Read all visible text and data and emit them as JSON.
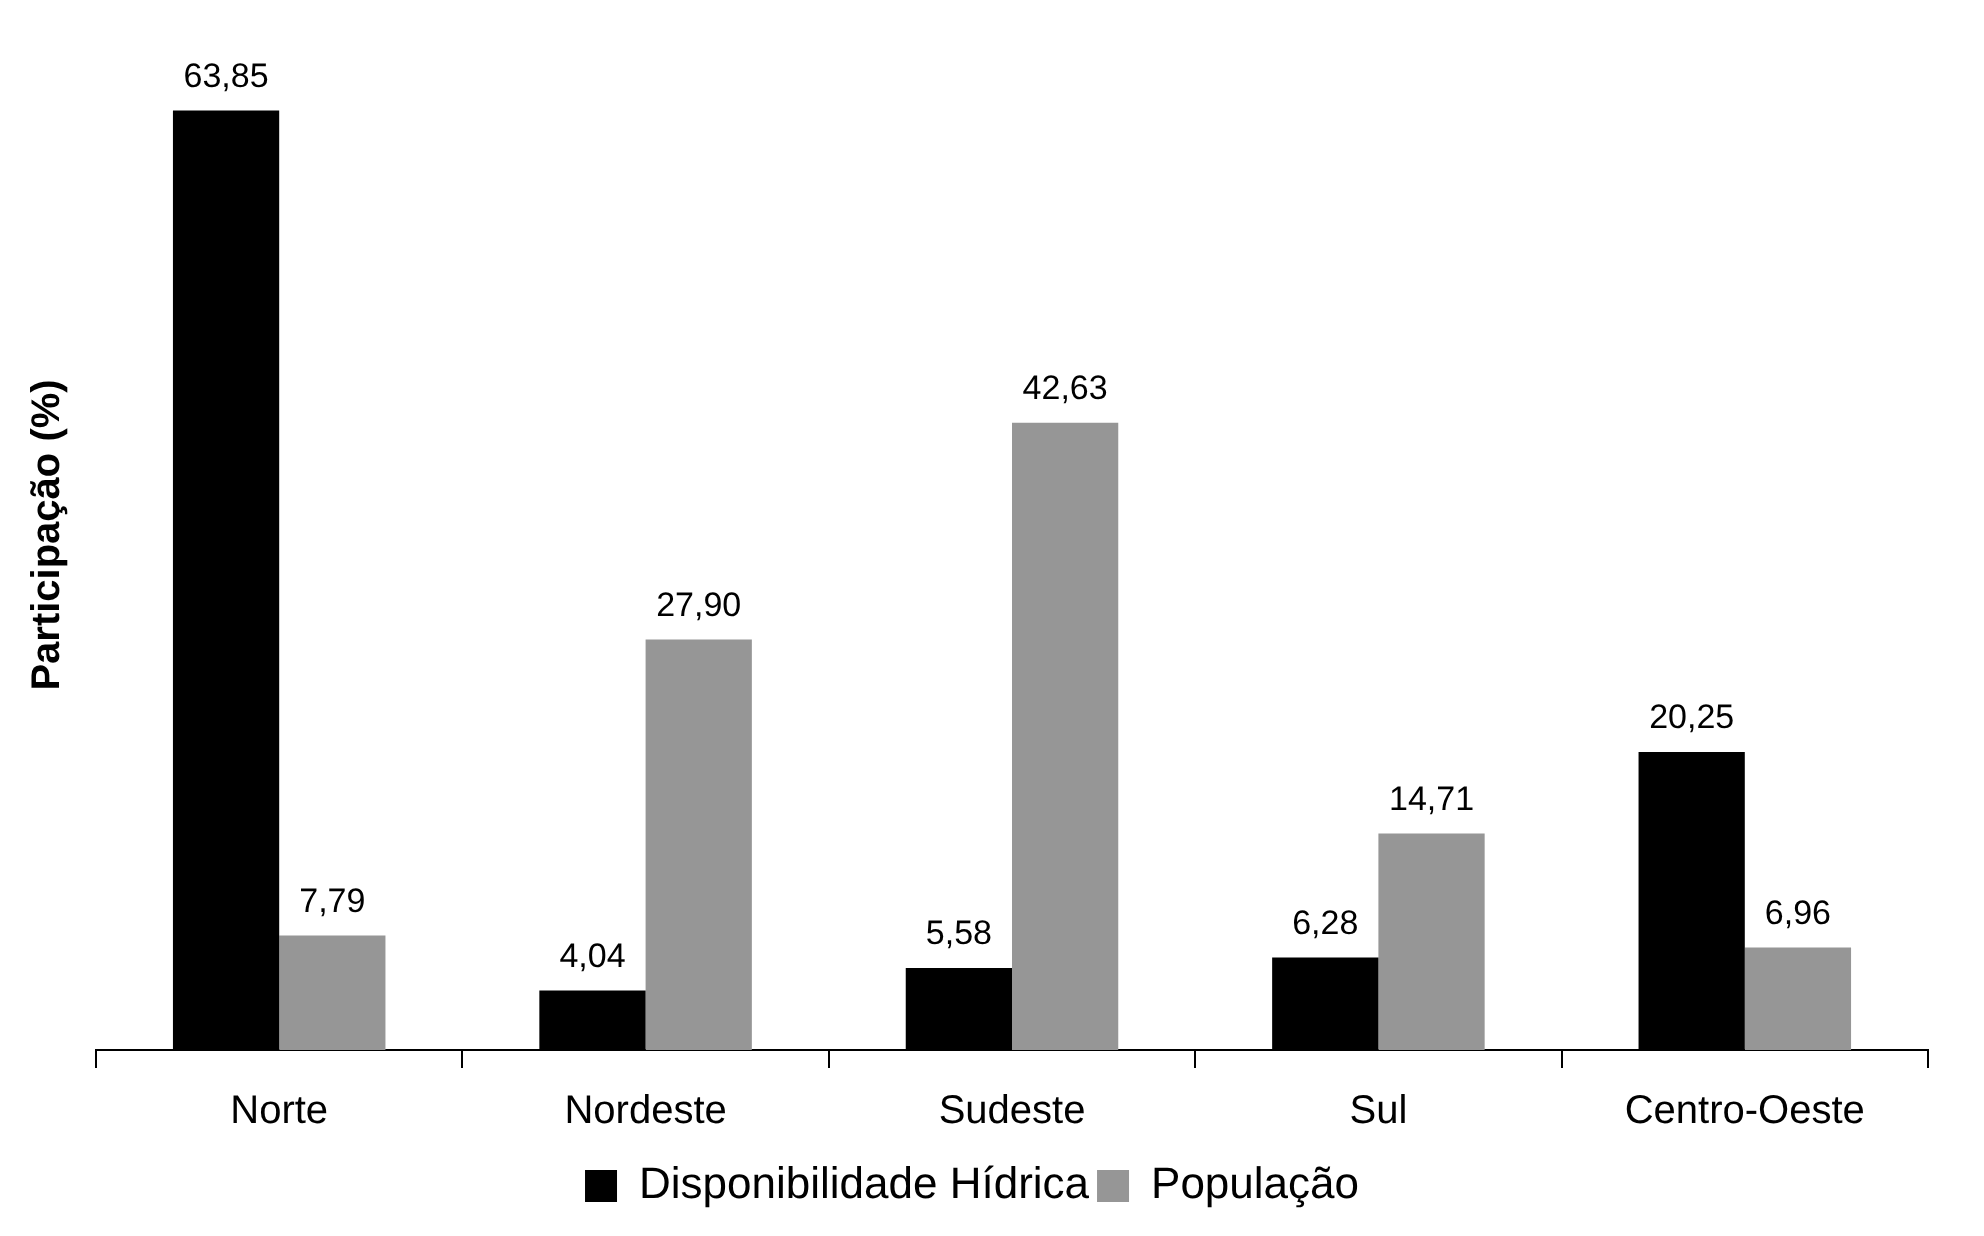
{
  "chart_data": {
    "type": "bar",
    "ylabel": "Participação (%)",
    "categories": [
      "Norte",
      "Nordeste",
      "Sudeste",
      "Sul",
      "Centro-Oeste"
    ],
    "tick_labels": "x",
    "grid": false,
    "legend": "bottom",
    "series": [
      {
        "name": "Disponibilidade Hídrica",
        "color": "#000000",
        "values": [
          63.85,
          4.04,
          5.58,
          6.28,
          20.25
        ],
        "value_labels": [
          "63,85",
          "4,04",
          "5,58",
          "6,28",
          "20,25"
        ]
      },
      {
        "name": "População",
        "color": "#969696",
        "values": [
          7.79,
          27.9,
          42.63,
          14.71,
          6.96
        ],
        "value_labels": [
          "7,79",
          "27,90",
          "42,63",
          "14,71",
          "6,96"
        ]
      }
    ]
  }
}
